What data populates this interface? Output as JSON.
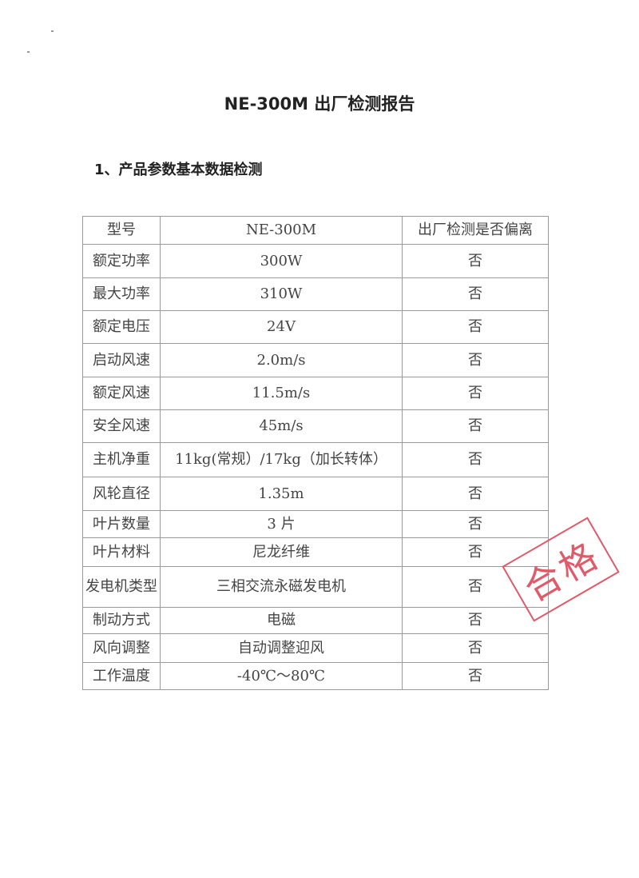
{
  "title": "NE-300M  出厂检测报告",
  "section_heading": "1、产品参数基本数据检测",
  "table": {
    "header": [
      "型号",
      "NE-300M",
      "出厂检测是否偏离"
    ],
    "rows": [
      [
        "额定功率",
        "300W",
        "否"
      ],
      [
        "最大功率",
        "310W",
        "否"
      ],
      [
        "额定电压",
        "24V",
        "否"
      ],
      [
        "启动风速",
        "2.0m/s",
        "否"
      ],
      [
        "额定风速",
        "11.5m/s",
        "否"
      ],
      [
        "安全风速",
        "45m/s",
        "否"
      ],
      [
        "主机净重",
        "11kg(常规）/17kg（加长转体）",
        "否"
      ],
      [
        "风轮直径",
        "1.35m",
        "否"
      ],
      [
        "叶片数量",
        "3 片",
        "否"
      ],
      [
        "叶片材料",
        "尼龙纤维",
        "否"
      ],
      [
        "发电机类型",
        "三相交流永磁发电机",
        "否"
      ],
      [
        "制动方式",
        "电磁",
        "否"
      ],
      [
        "风向调整",
        "自动调整迎风",
        "否"
      ],
      [
        "工作温度",
        "-40℃～80℃",
        "否"
      ]
    ]
  },
  "stamp": {
    "text": "合格",
    "color": "#e05a6a"
  }
}
